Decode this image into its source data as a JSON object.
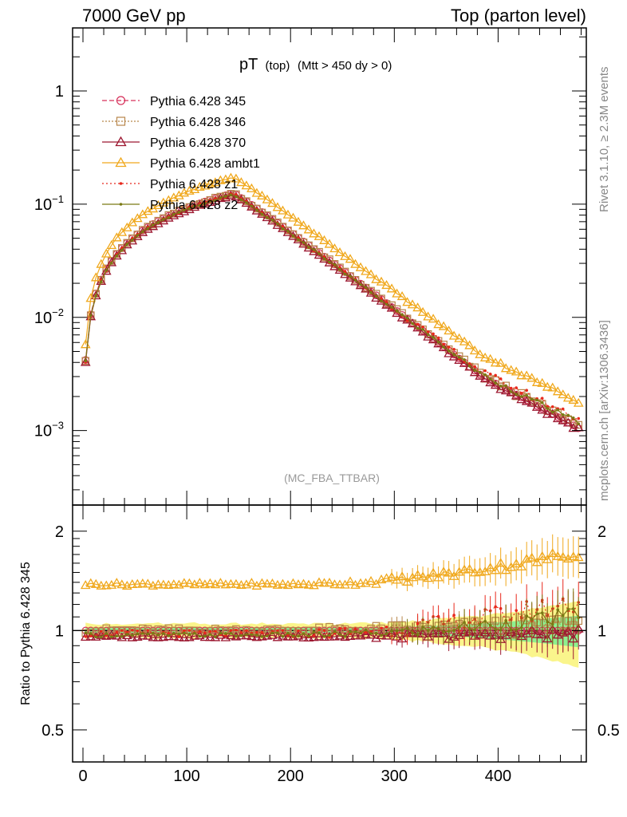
{
  "header": {
    "left": "7000 GeV pp",
    "right": "Top (parton level)"
  },
  "plot_title": {
    "main": "pT",
    "sub": "(top)",
    "cuts": "(Mtt > 450 dy > 0)"
  },
  "analysis_label": "(MC_FBA_TTBAR)",
  "side_labels": {
    "rivet": "Rivet 3.1.10, ≥ 2.3M events",
    "mcplots": "mcplots.cern.ch [arXiv:1306.3436]"
  },
  "ratio_ylabel": "Ratio to Pythia 6.428 345",
  "colors": {
    "p345": "#d6305a",
    "p346": "#b8864b",
    "p370": "#9c1730",
    "ambt1": "#f0a81c",
    "z1": "#e8281c",
    "z2": "#7a7a14",
    "band_green": "#8ef08e",
    "band_yellow": "#faf58c"
  },
  "chart_data": [
    {
      "type": "line",
      "scale": "log",
      "xlim": [
        -10,
        485
      ],
      "ylim": [
        0.00022,
        3.6
      ],
      "y_ticks": [
        {
          "v": 0.001,
          "b": "10",
          "e": "−3"
        },
        {
          "v": 0.01,
          "b": "10",
          "e": "−2"
        },
        {
          "v": 0.1,
          "b": "10",
          "e": "−1"
        },
        {
          "v": 1,
          "b": "1",
          "e": ""
        }
      ],
      "x_ticks": [
        0,
        100,
        200,
        300,
        400
      ],
      "shape": {
        "peak_x": 145,
        "peak_y": 0.125,
        "start_x": 2.5,
        "start_y": 0.0042,
        "x_at_0p02": 16,
        "x_at_0p003": 385,
        "end_x": 477.5,
        "end_y": 0.00105,
        "bin_width": 5
      },
      "series": [
        {
          "name": "Pythia 6.428 345",
          "key": "p345",
          "ratio_base": 1.0,
          "ratio_trend": 0.0,
          "noise": 0.0
        },
        {
          "name": "Pythia 6.428 346",
          "key": "p346",
          "ratio_base": 1.0,
          "ratio_trend": 0.05,
          "noise": 0.06
        },
        {
          "name": "Pythia 6.428 370",
          "key": "p370",
          "ratio_base": 0.96,
          "ratio_trend": 0.02,
          "noise": 0.03
        },
        {
          "name": "Pythia 6.428 ambt1",
          "key": "ambt1",
          "ratio_base": 1.38,
          "ratio_trend": 0.25,
          "noise": 0.05
        },
        {
          "name": "Pythia 6.428 z1",
          "key": "z1",
          "ratio_base": 0.98,
          "ratio_trend": 0.25,
          "noise": 0.08
        },
        {
          "name": "Pythia 6.428 z2",
          "key": "z2",
          "ratio_base": 0.97,
          "ratio_trend": 0.15,
          "noise": 0.05
        }
      ]
    },
    {
      "type": "line",
      "scale": "log",
      "xlim": [
        -10,
        485
      ],
      "ylim": [
        0.4,
        2.4
      ],
      "y_ticks": [
        {
          "v": 0.5,
          "label": "0.5"
        },
        {
          "v": 1,
          "label": "1"
        },
        {
          "v": 2,
          "label": "2"
        }
      ],
      "x_ticks": [
        0,
        100,
        200,
        300,
        400
      ],
      "reference_line": 1.0
    }
  ]
}
